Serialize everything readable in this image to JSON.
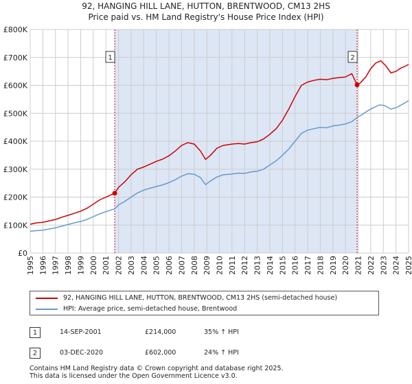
{
  "title_line1": "92, HANGING HILL LANE, HUTTON, BRENTWOOD, CM13 2HS",
  "title_line2": "Price paid vs. HM Land Registry's House Price Index (HPI)",
  "colors": {
    "property": "#cc0000",
    "hpi": "#6699cc",
    "shade": "#dde6f5",
    "grid": "#cccccc"
  },
  "chart_data": {
    "type": "line",
    "title": "Price paid vs. HM Land Registry's House Price Index (HPI)",
    "x_range": [
      1995,
      2025
    ],
    "y_range": [
      0,
      800000
    ],
    "y_ticks": [
      {
        "value": 0,
        "label": "£0"
      },
      {
        "value": 100000,
        "label": "£100K"
      },
      {
        "value": 200000,
        "label": "£200K"
      },
      {
        "value": 300000,
        "label": "£300K"
      },
      {
        "value": 400000,
        "label": "£400K"
      },
      {
        "value": 500000,
        "label": "£500K"
      },
      {
        "value": 600000,
        "label": "£600K"
      },
      {
        "value": 700000,
        "label": "£700K"
      },
      {
        "value": 800000,
        "label": "£800K"
      }
    ],
    "x_ticks": [
      "1995",
      "1996",
      "1997",
      "1998",
      "1999",
      "2000",
      "2001",
      "2002",
      "2003",
      "2004",
      "2005",
      "2006",
      "2007",
      "2008",
      "2009",
      "2010",
      "2011",
      "2012",
      "2013",
      "2014",
      "2015",
      "2016",
      "2017",
      "2018",
      "2019",
      "2020",
      "2021",
      "2022",
      "2023",
      "2024",
      "2025"
    ],
    "shaded_span": [
      2001.7,
      2020.92
    ],
    "series": [
      {
        "name": "92, HANGING HILL LANE, HUTTON, BRENTWOOD, CM13 2HS (semi-detached house)",
        "points": [
          [
            1995,
            103000
          ],
          [
            1995.5,
            108000
          ],
          [
            1996,
            110000
          ],
          [
            1996.5,
            115000
          ],
          [
            1997,
            120000
          ],
          [
            1997.5,
            128000
          ],
          [
            1998,
            135000
          ],
          [
            1998.5,
            142000
          ],
          [
            1999,
            150000
          ],
          [
            1999.5,
            160000
          ],
          [
            2000,
            175000
          ],
          [
            2000.5,
            190000
          ],
          [
            2001,
            200000
          ],
          [
            2001.4,
            208000
          ],
          [
            2001.7,
            214000
          ],
          [
            2002,
            235000
          ],
          [
            2002.5,
            255000
          ],
          [
            2003,
            280000
          ],
          [
            2003.5,
            300000
          ],
          [
            2004,
            308000
          ],
          [
            2004.5,
            318000
          ],
          [
            2005,
            328000
          ],
          [
            2005.5,
            336000
          ],
          [
            2006,
            348000
          ],
          [
            2006.5,
            365000
          ],
          [
            2007,
            385000
          ],
          [
            2007.5,
            395000
          ],
          [
            2008,
            390000
          ],
          [
            2008.5,
            365000
          ],
          [
            2008.9,
            335000
          ],
          [
            2009.3,
            350000
          ],
          [
            2009.8,
            375000
          ],
          [
            2010.3,
            385000
          ],
          [
            2011,
            390000
          ],
          [
            2011.5,
            392000
          ],
          [
            2012,
            390000
          ],
          [
            2012.5,
            395000
          ],
          [
            2013,
            398000
          ],
          [
            2013.5,
            408000
          ],
          [
            2014,
            425000
          ],
          [
            2014.5,
            445000
          ],
          [
            2015,
            475000
          ],
          [
            2015.5,
            515000
          ],
          [
            2016,
            560000
          ],
          [
            2016.5,
            600000
          ],
          [
            2017,
            612000
          ],
          [
            2017.5,
            618000
          ],
          [
            2018,
            622000
          ],
          [
            2018.5,
            620000
          ],
          [
            2019,
            625000
          ],
          [
            2019.5,
            628000
          ],
          [
            2020,
            630000
          ],
          [
            2020.5,
            642000
          ],
          [
            2020.92,
            602000
          ],
          [
            2021.2,
            610000
          ],
          [
            2021.6,
            630000
          ],
          [
            2022,
            660000
          ],
          [
            2022.4,
            680000
          ],
          [
            2022.8,
            688000
          ],
          [
            2023.2,
            670000
          ],
          [
            2023.6,
            645000
          ],
          [
            2024,
            650000
          ],
          [
            2024.4,
            662000
          ],
          [
            2024.8,
            670000
          ],
          [
            2025,
            675000
          ]
        ]
      },
      {
        "name": "HPI: Average price, semi-detached house, Brentwood",
        "points": [
          [
            1995,
            78000
          ],
          [
            1995.5,
            80000
          ],
          [
            1996,
            82000
          ],
          [
            1996.5,
            86000
          ],
          [
            1997,
            90000
          ],
          [
            1997.5,
            96000
          ],
          [
            1998,
            102000
          ],
          [
            1998.5,
            108000
          ],
          [
            1999,
            113000
          ],
          [
            1999.5,
            120000
          ],
          [
            2000,
            130000
          ],
          [
            2000.5,
            140000
          ],
          [
            2001,
            148000
          ],
          [
            2001.7,
            158000
          ],
          [
            2002,
            172000
          ],
          [
            2002.5,
            185000
          ],
          [
            2003,
            200000
          ],
          [
            2003.5,
            215000
          ],
          [
            2004,
            225000
          ],
          [
            2004.5,
            232000
          ],
          [
            2005,
            238000
          ],
          [
            2005.5,
            244000
          ],
          [
            2006,
            252000
          ],
          [
            2006.5,
            262000
          ],
          [
            2007,
            275000
          ],
          [
            2007.5,
            284000
          ],
          [
            2008,
            282000
          ],
          [
            2008.5,
            270000
          ],
          [
            2008.9,
            245000
          ],
          [
            2009.3,
            258000
          ],
          [
            2009.8,
            272000
          ],
          [
            2010.3,
            280000
          ],
          [
            2011,
            283000
          ],
          [
            2011.5,
            286000
          ],
          [
            2012,
            285000
          ],
          [
            2012.5,
            290000
          ],
          [
            2013,
            293000
          ],
          [
            2013.5,
            300000
          ],
          [
            2014,
            315000
          ],
          [
            2014.5,
            330000
          ],
          [
            2015,
            350000
          ],
          [
            2015.5,
            372000
          ],
          [
            2016,
            400000
          ],
          [
            2016.5,
            428000
          ],
          [
            2017,
            440000
          ],
          [
            2017.5,
            445000
          ],
          [
            2018,
            450000
          ],
          [
            2018.5,
            448000
          ],
          [
            2019,
            455000
          ],
          [
            2019.5,
            458000
          ],
          [
            2020,
            462000
          ],
          [
            2020.5,
            470000
          ],
          [
            2020.92,
            485000
          ],
          [
            2021.3,
            495000
          ],
          [
            2021.8,
            510000
          ],
          [
            2022.2,
            520000
          ],
          [
            2022.7,
            530000
          ],
          [
            2023.1,
            528000
          ],
          [
            2023.6,
            515000
          ],
          [
            2024,
            520000
          ],
          [
            2024.5,
            532000
          ],
          [
            2025,
            545000
          ]
        ]
      }
    ],
    "sales": [
      {
        "id": "1",
        "year": 2001.7,
        "price": 214000
      },
      {
        "id": "2",
        "year": 2020.92,
        "price": 602000
      }
    ]
  },
  "legend": {
    "property_label": "92, HANGING HILL LANE, HUTTON, BRENTWOOD, CM13 2HS (semi-detached house)",
    "hpi_label": "HPI: Average price, semi-detached house, Brentwood"
  },
  "sales_table": [
    {
      "id": "1",
      "date": "14-SEP-2001",
      "price": "£214,000",
      "hpi": "35% ↑ HPI"
    },
    {
      "id": "2",
      "date": "03-DEC-2020",
      "price": "£602,000",
      "hpi": "24% ↑ HPI"
    }
  ],
  "footer_line1": "Contains HM Land Registry data © Crown copyright and database right 2025.",
  "footer_line2": "This data is licensed under the Open Government Licence v3.0."
}
